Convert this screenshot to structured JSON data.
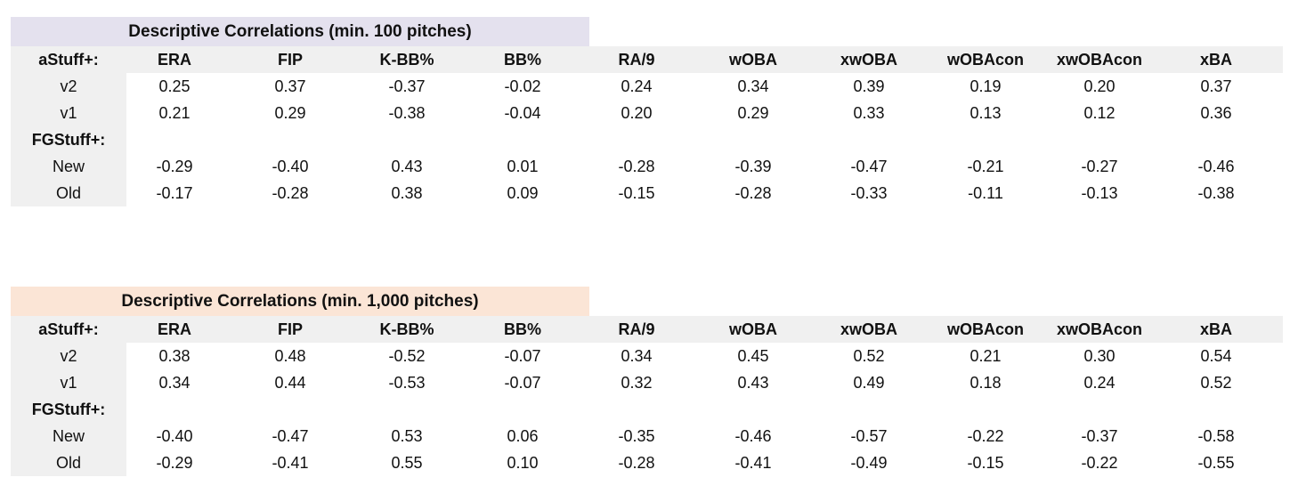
{
  "colors": {
    "title1_bg": "#e4e1ee",
    "title2_bg": "#fbe5d6",
    "header_bg": "#f0f0f0",
    "label_bg": "#f0f0f0"
  },
  "chart_data": [
    {
      "type": "table",
      "title": "Descriptive Correlations (min. 100 pitches)",
      "group1_label": "aStuff+:",
      "group2_label": "FGStuff+:",
      "columns": [
        "ERA",
        "FIP",
        "K-BB%",
        "BB%",
        "RA/9",
        "wOBA",
        "xwOBA",
        "wOBAcon",
        "xwOBAcon",
        "xBA"
      ],
      "rows": [
        {
          "label": "v2",
          "values": [
            "0.25",
            "0.37",
            "-0.37",
            "-0.02",
            "0.24",
            "0.34",
            "0.39",
            "0.19",
            "0.20",
            "0.37"
          ]
        },
        {
          "label": "v1",
          "values": [
            "0.21",
            "0.29",
            "-0.38",
            "-0.04",
            "0.20",
            "0.29",
            "0.33",
            "0.13",
            "0.12",
            "0.36"
          ]
        },
        {
          "label": "New",
          "values": [
            "-0.29",
            "-0.40",
            "0.43",
            "0.01",
            "-0.28",
            "-0.39",
            "-0.47",
            "-0.21",
            "-0.27",
            "-0.46"
          ]
        },
        {
          "label": "Old",
          "values": [
            "-0.17",
            "-0.28",
            "0.38",
            "0.09",
            "-0.15",
            "-0.28",
            "-0.33",
            "-0.11",
            "-0.13",
            "-0.38"
          ]
        }
      ]
    },
    {
      "type": "table",
      "title": "Descriptive Correlations (min. 1,000 pitches)",
      "group1_label": "aStuff+:",
      "group2_label": "FGStuff+:",
      "columns": [
        "ERA",
        "FIP",
        "K-BB%",
        "BB%",
        "RA/9",
        "wOBA",
        "xwOBA",
        "wOBAcon",
        "xwOBAcon",
        "xBA"
      ],
      "rows": [
        {
          "label": "v2",
          "values": [
            "0.38",
            "0.48",
            "-0.52",
            "-0.07",
            "0.34",
            "0.45",
            "0.52",
            "0.21",
            "0.30",
            "0.54"
          ]
        },
        {
          "label": "v1",
          "values": [
            "0.34",
            "0.44",
            "-0.53",
            "-0.07",
            "0.32",
            "0.43",
            "0.49",
            "0.18",
            "0.24",
            "0.52"
          ]
        },
        {
          "label": "New",
          "values": [
            "-0.40",
            "-0.47",
            "0.53",
            "0.06",
            "-0.35",
            "-0.46",
            "-0.57",
            "-0.22",
            "-0.37",
            "-0.58"
          ]
        },
        {
          "label": "Old",
          "values": [
            "-0.29",
            "-0.41",
            "0.55",
            "0.10",
            "-0.28",
            "-0.41",
            "-0.49",
            "-0.15",
            "-0.22",
            "-0.55"
          ]
        }
      ]
    }
  ]
}
